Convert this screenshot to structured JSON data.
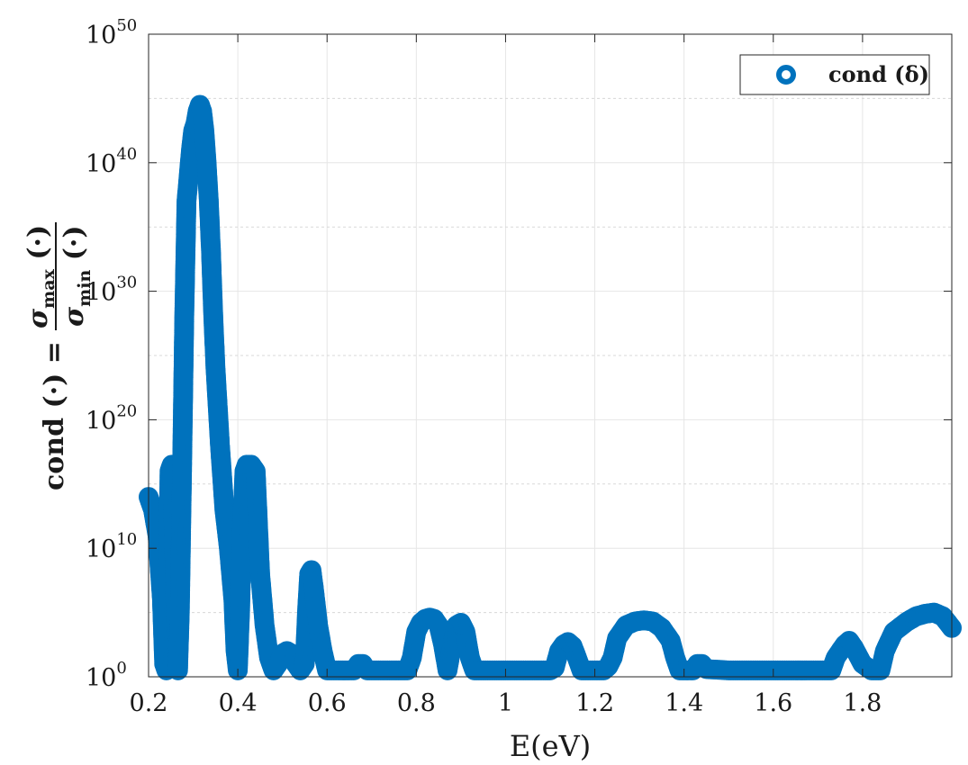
{
  "chart_data": {
    "type": "scatter",
    "xlabel": "E(eV)",
    "ylabel": {
      "lhs": "cond (·) = ",
      "numerator": "σ",
      "numerator_sub": "max",
      "numerator_arg": " (·)",
      "denominator": "σ",
      "denominator_sub": "min",
      "denominator_arg": " (·)"
    },
    "xlim": [
      0.2,
      2.0
    ],
    "ylim_log10": [
      0,
      50
    ],
    "yscale": "log",
    "grid": true,
    "legend_placement": "top-right",
    "x_ticks": [
      "0.2",
      "0.4",
      "0.6",
      "0.8",
      "1",
      "1.2",
      "1.4",
      "1.6",
      "1.8"
    ],
    "x_tick_values": [
      0.2,
      0.4,
      0.6,
      0.8,
      1.0,
      1.2,
      1.4,
      1.6,
      1.8
    ],
    "y_ticks": [
      {
        "base": "10",
        "exp": "0",
        "value_log10": 0
      },
      {
        "base": "10",
        "exp": "10",
        "value_log10": 10
      },
      {
        "base": "10",
        "exp": "20",
        "value_log10": 20
      },
      {
        "base": "10",
        "exp": "30",
        "value_log10": 30
      },
      {
        "base": "10",
        "exp": "40",
        "value_log10": 40
      },
      {
        "base": "10",
        "exp": "50",
        "value_log10": 50
      }
    ],
    "series": [
      {
        "name": "cond (δ)",
        "color": "#0072BD",
        "marker": "circle-open",
        "x_unit": "eV",
        "y_unit": "log10(cond)",
        "points": [
          [
            0.2,
            14.0
          ],
          [
            0.21,
            13.0
          ],
          [
            0.22,
            11.0
          ],
          [
            0.23,
            6.0
          ],
          [
            0.235,
            1.0
          ],
          [
            0.24,
            0.5
          ],
          [
            0.243,
            6.0
          ],
          [
            0.247,
            16.0
          ],
          [
            0.252,
            16.5
          ],
          [
            0.258,
            10.0
          ],
          [
            0.262,
            3.0
          ],
          [
            0.266,
            0.5
          ],
          [
            0.27,
            5.0
          ],
          [
            0.275,
            16.0
          ],
          [
            0.28,
            28.0
          ],
          [
            0.285,
            37.0
          ],
          [
            0.29,
            39.0
          ],
          [
            0.295,
            41.0
          ],
          [
            0.3,
            42.5
          ],
          [
            0.305,
            43.0
          ],
          [
            0.31,
            44.0
          ],
          [
            0.315,
            44.5
          ],
          [
            0.32,
            44.0
          ],
          [
            0.325,
            42.5
          ],
          [
            0.33,
            40.0
          ],
          [
            0.335,
            37.0
          ],
          [
            0.34,
            33.0
          ],
          [
            0.345,
            28.0
          ],
          [
            0.35,
            24.0
          ],
          [
            0.36,
            18.0
          ],
          [
            0.37,
            13.0
          ],
          [
            0.38,
            10.0
          ],
          [
            0.39,
            6.0
          ],
          [
            0.395,
            2.0
          ],
          [
            0.4,
            0.5
          ],
          [
            0.405,
            5.0
          ],
          [
            0.41,
            12.0
          ],
          [
            0.415,
            16.0
          ],
          [
            0.42,
            16.5
          ],
          [
            0.43,
            16.5
          ],
          [
            0.44,
            16.0
          ],
          [
            0.445,
            12.0
          ],
          [
            0.45,
            8.0
          ],
          [
            0.46,
            4.0
          ],
          [
            0.47,
            1.5
          ],
          [
            0.48,
            0.5
          ],
          [
            0.49,
            1.0
          ],
          [
            0.5,
            1.8
          ],
          [
            0.51,
            2.0
          ],
          [
            0.52,
            1.8
          ],
          [
            0.53,
            1.0
          ],
          [
            0.54,
            0.5
          ],
          [
            0.55,
            1.0
          ],
          [
            0.555,
            5.0
          ],
          [
            0.56,
            8.0
          ],
          [
            0.565,
            8.3
          ],
          [
            0.57,
            7.0
          ],
          [
            0.58,
            4.0
          ],
          [
            0.59,
            2.0
          ],
          [
            0.6,
            0.5
          ],
          [
            0.62,
            0.5
          ],
          [
            0.64,
            0.5
          ],
          [
            0.66,
            0.5
          ],
          [
            0.67,
            1.0
          ],
          [
            0.68,
            1.0
          ],
          [
            0.69,
            0.5
          ],
          [
            0.72,
            0.5
          ],
          [
            0.75,
            0.5
          ],
          [
            0.78,
            0.5
          ],
          [
            0.79,
            1.5
          ],
          [
            0.8,
            3.5
          ],
          [
            0.81,
            4.2
          ],
          [
            0.82,
            4.5
          ],
          [
            0.83,
            4.6
          ],
          [
            0.84,
            4.5
          ],
          [
            0.85,
            4.0
          ],
          [
            0.86,
            2.5
          ],
          [
            0.87,
            0.5
          ],
          [
            0.88,
            2.5
          ],
          [
            0.89,
            4.0
          ],
          [
            0.9,
            4.2
          ],
          [
            0.91,
            3.5
          ],
          [
            0.92,
            1.5
          ],
          [
            0.93,
            0.5
          ],
          [
            0.96,
            0.5
          ],
          [
            1.0,
            0.5
          ],
          [
            1.05,
            0.5
          ],
          [
            1.1,
            0.5
          ],
          [
            1.11,
            0.7
          ],
          [
            1.12,
            2.0
          ],
          [
            1.13,
            2.5
          ],
          [
            1.14,
            2.7
          ],
          [
            1.15,
            2.4
          ],
          [
            1.16,
            1.5
          ],
          [
            1.17,
            0.5
          ],
          [
            1.2,
            0.5
          ],
          [
            1.22,
            0.5
          ],
          [
            1.23,
            0.8
          ],
          [
            1.24,
            1.5
          ],
          [
            1.25,
            3.0
          ],
          [
            1.27,
            4.0
          ],
          [
            1.29,
            4.3
          ],
          [
            1.31,
            4.4
          ],
          [
            1.33,
            4.3
          ],
          [
            1.35,
            3.8
          ],
          [
            1.37,
            2.8
          ],
          [
            1.38,
            1.5
          ],
          [
            1.39,
            0.5
          ],
          [
            1.42,
            0.5
          ],
          [
            1.43,
            1.0
          ],
          [
            1.44,
            1.0
          ],
          [
            1.45,
            0.6
          ],
          [
            1.5,
            0.5
          ],
          [
            1.55,
            0.5
          ],
          [
            1.6,
            0.5
          ],
          [
            1.65,
            0.5
          ],
          [
            1.7,
            0.5
          ],
          [
            1.73,
            0.5
          ],
          [
            1.74,
            1.5
          ],
          [
            1.76,
            2.5
          ],
          [
            1.77,
            2.8
          ],
          [
            1.78,
            2.3
          ],
          [
            1.8,
            1.0
          ],
          [
            1.82,
            0.5
          ],
          [
            1.84,
            0.5
          ],
          [
            1.85,
            2.0
          ],
          [
            1.87,
            3.5
          ],
          [
            1.9,
            4.3
          ],
          [
            1.92,
            4.7
          ],
          [
            1.94,
            4.9
          ],
          [
            1.96,
            5.0
          ],
          [
            1.98,
            4.7
          ],
          [
            2.0,
            3.8
          ]
        ]
      }
    ]
  }
}
